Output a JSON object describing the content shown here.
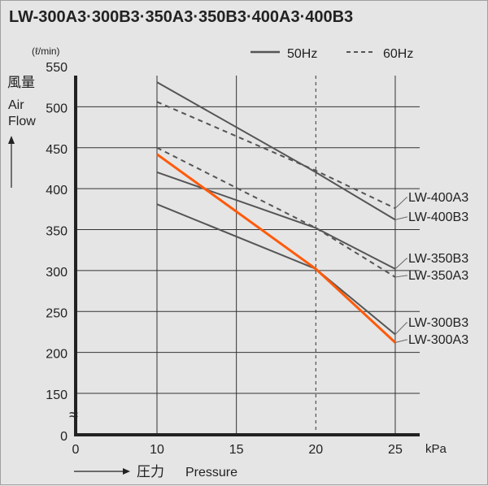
{
  "chart_data": {
    "type": "line",
    "title": "LW-300A3·300B3·350A3·350B3·400A3·400B3",
    "ylabel_unit": "(ℓ/min)",
    "ylabel_jp": "風量",
    "ylabel_en_1": "Air",
    "ylabel_en_2": "Flow",
    "xlabel_jp": "圧力",
    "xlabel_en": "Pressure",
    "xunit": "kPa",
    "xticks": [
      0,
      10,
      15,
      20,
      25
    ],
    "yticks": [
      0,
      150,
      200,
      250,
      300,
      350,
      400,
      450,
      500,
      550
    ],
    "y_axis_break": "between 0 and 150",
    "grid": true,
    "legend": {
      "position": "top-right",
      "solid": "50Hz",
      "dashed": "60Hz"
    },
    "series": [
      {
        "name": "LW-400A3",
        "style": "dashed",
        "color": "#555555",
        "x": [
          10,
          20,
          25
        ],
        "y": [
          506,
          422,
          376
        ]
      },
      {
        "name": "LW-400B3",
        "style": "solid",
        "color": "#555555",
        "x": [
          10,
          20,
          25
        ],
        "y": [
          530,
          420,
          362
        ]
      },
      {
        "name": "LW-350B3",
        "style": "solid",
        "color": "#555555",
        "x": [
          10,
          20,
          25
        ],
        "y": [
          420,
          352,
          302
        ]
      },
      {
        "name": "LW-350A3",
        "style": "dashed",
        "color": "#555555",
        "x": [
          10,
          20,
          25
        ],
        "y": [
          450,
          352,
          292
        ]
      },
      {
        "name": "LW-300B3",
        "style": "solid",
        "color": "#555555",
        "x": [
          10,
          20,
          25
        ],
        "y": [
          381,
          302,
          222
        ]
      },
      {
        "name": "LW-300A3",
        "style": "solid",
        "color": "#ff5a0a",
        "x": [
          10,
          20,
          25
        ],
        "y": [
          442,
          302,
          212
        ]
      }
    ]
  }
}
